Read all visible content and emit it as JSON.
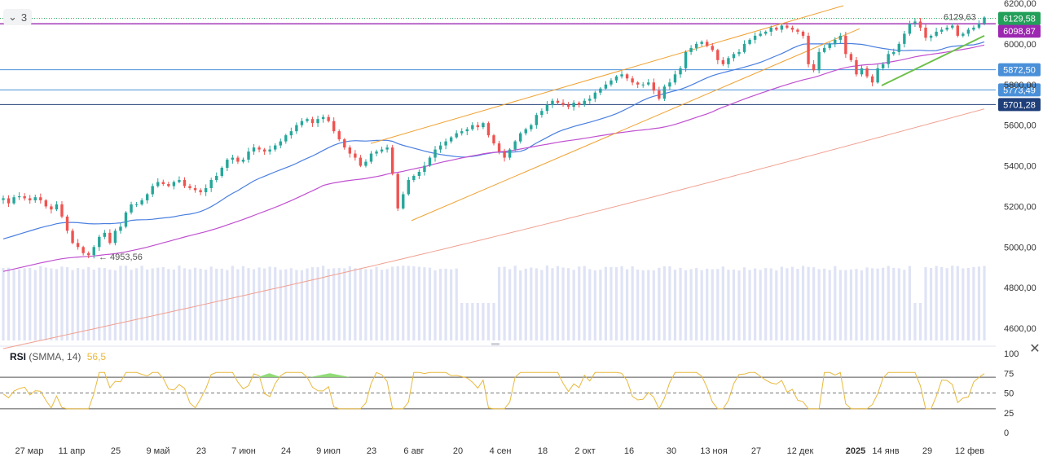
{
  "toolbar": {
    "collapse_count": "3",
    "collapse_icon": "chevron-down-icon"
  },
  "rsi": {
    "name": "RSI",
    "params": "(SMMA, 14)",
    "value": "56,5",
    "value_color": "#e8b93e",
    "levels": [
      70,
      50,
      30
    ]
  },
  "chart_data": {
    "type": "candlestick",
    "price_axis": {
      "min": 4500,
      "max": 6200,
      "ticks": [
        "6200,00",
        "6000,00",
        "5800,00",
        "5600,00",
        "5400,00",
        "5200,00",
        "5000,00",
        "4800,00",
        "4600,00"
      ]
    },
    "rsi_axis": {
      "ticks": [
        "100",
        "75",
        "50",
        "25",
        "0"
      ]
    },
    "time_axis": {
      "labels": [
        "27 мар",
        "11 апр",
        "25",
        "9 май",
        "23",
        "7 июн",
        "24",
        "9 июл",
        "23",
        "6 авг",
        "20",
        "4 сен",
        "18",
        "2 окт",
        "16",
        "30",
        "13 ноя",
        "27",
        "12 дек",
        "2025",
        "14 янв",
        "29",
        "12 фев"
      ]
    },
    "horizontal_levels": [
      {
        "label": "5872,50",
        "value": 5872.5,
        "color": "#4a90d9"
      },
      {
        "label": "5773,49",
        "value": 5773.49,
        "color": "#4a90d9"
      },
      {
        "label": "5701,28",
        "value": 5701.28,
        "color": "#1f3f7a"
      }
    ],
    "price_labels": [
      {
        "label": "6129,58",
        "value": 6129.58,
        "color": "#22a05a"
      },
      {
        "label": "6098,87",
        "value": 6098.87,
        "color": "#9c27b0"
      }
    ],
    "annotations": [
      {
        "text": "6129,63",
        "value": 6129.63
      },
      {
        "text": "← 4953,56",
        "value": 4953.56
      }
    ],
    "series_colors": {
      "up": "#26a69a",
      "down": "#ef5350",
      "ma50": "#4a7fe0",
      "ma100": "#c050d0",
      "ma200": "#f0a090",
      "channel": "#f0a030",
      "trend": "#6cc04a",
      "volume": "#dfe3f5"
    },
    "closes": [
      5240,
      5215,
      5245,
      5250,
      5240,
      5230,
      5245,
      5230,
      5200,
      5185,
      5210,
      5150,
      5080,
      5020,
      5000,
      4970,
      4960,
      5000,
      5050,
      5070,
      5020,
      5080,
      5100,
      5170,
      5210,
      5210,
      5230,
      5260,
      5300,
      5320,
      5310,
      5300,
      5320,
      5330,
      5300,
      5290,
      5280,
      5270,
      5290,
      5330,
      5350,
      5390,
      5430,
      5440,
      5420,
      5430,
      5470,
      5490,
      5480,
      5470,
      5480,
      5500,
      5520,
      5550,
      5570,
      5600,
      5620,
      5630,
      5610,
      5630,
      5640,
      5620,
      5570,
      5530,
      5490,
      5460,
      5440,
      5400,
      5420,
      5460,
      5470,
      5480,
      5490,
      5360,
      5190,
      5260,
      5330,
      5350,
      5370,
      5400,
      5440,
      5480,
      5500,
      5520,
      5540,
      5560,
      5570,
      5580,
      5600,
      5590,
      5610,
      5550,
      5510,
      5470,
      5440,
      5480,
      5520,
      5560,
      5580,
      5600,
      5650,
      5670,
      5700,
      5720,
      5710,
      5700,
      5690,
      5710,
      5700,
      5720,
      5730,
      5760,
      5780,
      5800,
      5820,
      5840,
      5850,
      5830,
      5810,
      5800,
      5800,
      5810,
      5770,
      5730,
      5790,
      5810,
      5850,
      5880,
      5960,
      5980,
      6000,
      6010,
      5990,
      5970,
      5920,
      5900,
      5930,
      5950,
      5960,
      6000,
      6020,
      6040,
      6050,
      6060,
      6080,
      6070,
      6090,
      6080,
      6070,
      6060,
      6040,
      5900,
      5870,
      5960,
      5980,
      6000,
      6020,
      6040,
      5950,
      5920,
      5850,
      5880,
      5840,
      5810,
      5880,
      5900,
      5950,
      5960,
      6000,
      6050,
      6100,
      6110,
      6080,
      6030,
      6040,
      6060,
      6070,
      6080,
      6090,
      6040,
      6050,
      6070,
      6080,
      6100,
      6130
    ]
  }
}
